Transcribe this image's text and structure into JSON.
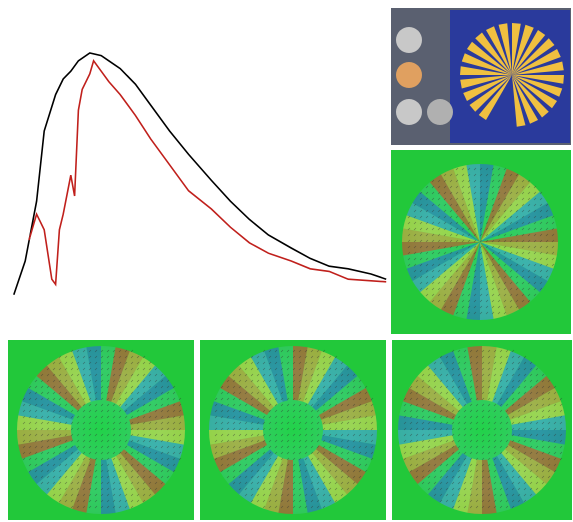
{
  "chart_data": {
    "type": "line",
    "xlim": [
      0,
      100
    ],
    "ylim": [
      0,
      100
    ],
    "series": [
      {
        "color": "#000000",
        "x": [
          1,
          4,
          7,
          9,
          12,
          14,
          16,
          18,
          21,
          24,
          26,
          29,
          33,
          37,
          42,
          47,
          53,
          58,
          63,
          68,
          74,
          79,
          84,
          89,
          95,
          99
        ],
        "values": [
          2,
          15,
          38,
          65,
          79,
          85,
          88,
          92,
          95,
          94,
          92,
          89,
          83,
          75,
          65,
          56,
          46,
          38,
          31,
          25,
          20,
          16,
          13,
          12,
          10,
          8
        ]
      },
      {
        "color": "#c0201c",
        "x": [
          5,
          7,
          9,
          11,
          12,
          13,
          14,
          16,
          17,
          18,
          19,
          21,
          22,
          24,
          26,
          29,
          33,
          37,
          42,
          47,
          53,
          58,
          63,
          68,
          74,
          79,
          84,
          89,
          99
        ],
        "values": [
          23,
          33,
          27,
          8,
          6,
          27,
          33,
          48,
          40,
          73,
          81,
          87,
          92,
          88,
          84,
          79,
          71,
          62,
          52,
          42,
          35,
          28,
          22,
          18,
          15,
          12,
          11,
          8,
          7
        ]
      }
    ]
  }
}
